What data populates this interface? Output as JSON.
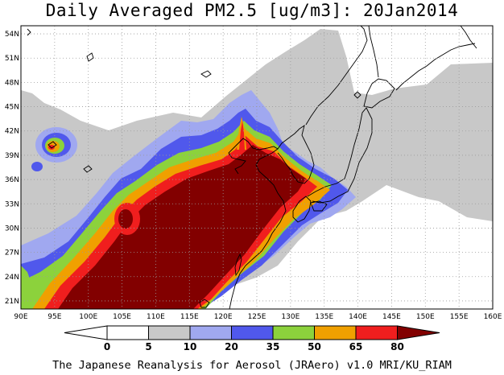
{
  "title": "Daily Averaged PM2.5 [ug/m3]: 20Jan2014",
  "credit": "The Japanese Reanalysis for Aerosol (JRAero) v1.0 MRI/KU_RIAM",
  "map": {
    "lon_range": [
      90,
      160
    ],
    "lat_range": [
      20,
      55
    ],
    "lon_ticks": [
      "90E",
      "95E",
      "100E",
      "105E",
      "110E",
      "115E",
      "120E",
      "125E",
      "130E",
      "135E",
      "140E",
      "145E",
      "150E",
      "155E",
      "160E"
    ],
    "lat_ticks": [
      "21N",
      "24N",
      "27N",
      "30N",
      "33N",
      "36N",
      "39N",
      "42N",
      "45N",
      "48N",
      "51N",
      "54N"
    ],
    "grid": true
  },
  "colorbar": {
    "levels": [
      "0",
      "5",
      "10",
      "20",
      "35",
      "50",
      "65",
      "80"
    ],
    "colors": {
      "lt0": "#ffffff",
      "0-5": "#ffffff",
      "5-10": "#c8c8c8",
      "10-20": "#a0a8f0",
      "20-35": "#5058ec",
      "35-50": "#8cd23c",
      "50-65": "#f0a000",
      "65-80": "#f01e1e",
      "gt80": "#820000"
    }
  }
}
